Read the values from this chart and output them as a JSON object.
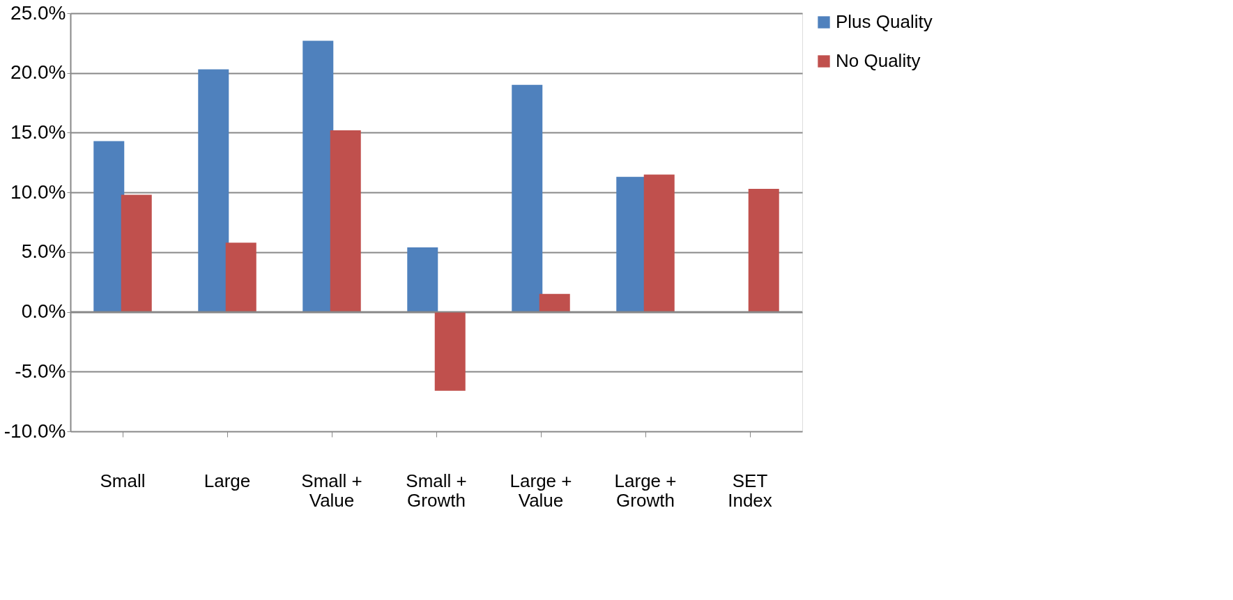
{
  "chart_data": {
    "type": "bar",
    "categories": [
      "Small",
      "Large",
      "Small +\nValue",
      "Small +\nGrowth",
      "Large +\nValue",
      "Large +\nGrowth",
      "SET\nIndex"
    ],
    "series": [
      {
        "name": "Plus Quality",
        "color": "#4f81bd",
        "values": [
          14.3,
          20.3,
          22.7,
          5.4,
          19.0,
          11.3,
          null
        ]
      },
      {
        "name": "No Quality",
        "color": "#c0504d",
        "values": [
          9.8,
          5.8,
          15.2,
          -6.6,
          1.5,
          11.5,
          10.3
        ]
      }
    ],
    "ylim": [
      -10,
      25
    ],
    "yticks": [
      {
        "value": -10,
        "label": "-10.0%"
      },
      {
        "value": -5,
        "label": "-5.0%"
      },
      {
        "value": 0,
        "label": "0.0%"
      },
      {
        "value": 5,
        "label": "5.0%"
      },
      {
        "value": 10,
        "label": "10.0%"
      },
      {
        "value": 15,
        "label": "15.0%"
      },
      {
        "value": 20,
        "label": "20.0%"
      },
      {
        "value": 25,
        "label": "25.0%"
      }
    ],
    "grid": "y",
    "legend": "right"
  }
}
